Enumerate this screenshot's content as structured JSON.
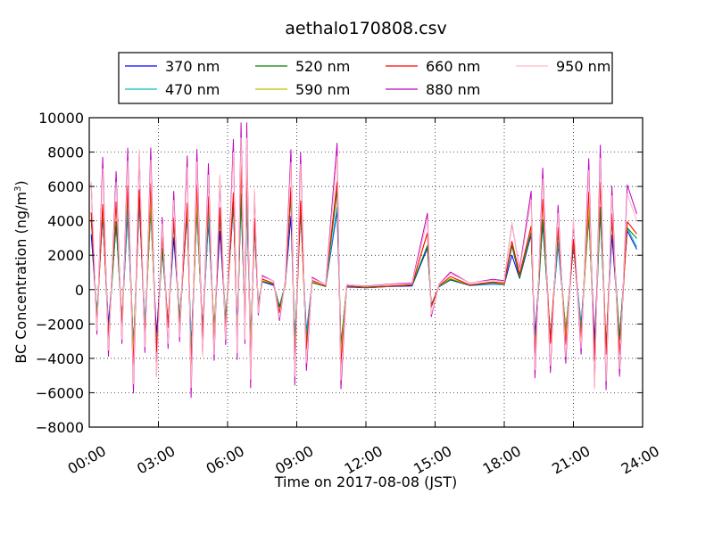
{
  "chart_data": {
    "type": "line",
    "title": "aethalo170808.csv",
    "xlabel": "Time on 2017-08-08 (JST)",
    "ylabel": "BC Concentration (ng/m",
    "ylabel_sup": "3",
    "ylabel_close": ")",
    "xlim": [
      "00:00",
      "24:00"
    ],
    "ylim": [
      -8000,
      10000
    ],
    "x_ticks": [
      "00:00",
      "03:00",
      "06:00",
      "09:00",
      "12:00",
      "15:00",
      "18:00",
      "21:00",
      "24:00"
    ],
    "y_ticks": [
      -8000,
      -6000,
      -4000,
      -2000,
      0,
      2000,
      4000,
      6000,
      8000,
      10000
    ],
    "grid": true,
    "legend_position": "top",
    "series": [
      {
        "name": "370 nm",
        "color": "#0000ff"
      },
      {
        "name": "470 nm",
        "color": "#00bfbf"
      },
      {
        "name": "520 nm",
        "color": "#008000"
      },
      {
        "name": "590 nm",
        "color": "#bfbf00"
      },
      {
        "name": "660 nm",
        "color": "#ff0000"
      },
      {
        "name": "880 nm",
        "color": "#bf00bf"
      },
      {
        "name": "950 nm",
        "color": "#ffb6c1"
      }
    ],
    "key_points_880nm": [
      [
        "00:05",
        6400
      ],
      [
        "00:20",
        -2600
      ],
      [
        "00:35",
        7400
      ],
      [
        "00:50",
        -4000
      ],
      [
        "01:10",
        6800
      ],
      [
        "01:25",
        -3000
      ],
      [
        "01:40",
        8400
      ],
      [
        "01:55",
        -5900
      ],
      [
        "02:10",
        8400
      ],
      [
        "02:25",
        -3700
      ],
      [
        "02:40",
        8000
      ],
      [
        "02:55",
        -5200
      ],
      [
        "03:10",
        4200
      ],
      [
        "03:25",
        -3300
      ],
      [
        "03:40",
        5900
      ],
      [
        "03:55",
        -3000
      ],
      [
        "04:15",
        7400
      ],
      [
        "04:25",
        -6400
      ],
      [
        "04:40",
        8000
      ],
      [
        "04:55",
        -4000
      ],
      [
        "05:10",
        7400
      ],
      [
        "05:25",
        -4000
      ],
      [
        "05:40",
        6800
      ],
      [
        "05:55",
        -3200
      ],
      [
        "06:15",
        8400
      ],
      [
        "06:25",
        -4200
      ],
      [
        "06:35",
        9600
      ],
      [
        "06:45",
        -3000
      ],
      [
        "06:50",
        9900
      ],
      [
        "07:00",
        -5600
      ],
      [
        "07:10",
        6000
      ],
      [
        "07:20",
        -1500
      ],
      [
        "07:30",
        800
      ],
      [
        "08:00",
        500
      ],
      [
        "08:15",
        -1800
      ],
      [
        "08:30",
        500
      ],
      [
        "08:45",
        8400
      ],
      [
        "08:55",
        -5500
      ],
      [
        "09:10",
        7600
      ],
      [
        "09:25",
        -4800
      ],
      [
        "09:40",
        700
      ],
      [
        "10:15",
        300
      ],
      [
        "10:45",
        8600
      ],
      [
        "10:55",
        -5600
      ],
      [
        "11:10",
        300
      ],
      [
        "12:00",
        200
      ],
      [
        "13:00",
        300
      ],
      [
        "14:00",
        400
      ],
      [
        "14:40",
        4400
      ],
      [
        "14:50",
        -1500
      ],
      [
        "15:10",
        300
      ],
      [
        "15:40",
        1000
      ],
      [
        "16:30",
        400
      ],
      [
        "17:30",
        600
      ],
      [
        "18:00",
        500
      ],
      [
        "18:20",
        4000
      ],
      [
        "18:40",
        1200
      ],
      [
        "19:10",
        5500
      ],
      [
        "19:20",
        -5300
      ],
      [
        "19:40",
        7000
      ],
      [
        "20:00",
        -4600
      ],
      [
        "20:20",
        5000
      ],
      [
        "20:40",
        -4200
      ],
      [
        "21:00",
        4200
      ],
      [
        "21:20",
        -3800
      ],
      [
        "21:40",
        7400
      ],
      [
        "21:55",
        -5900
      ],
      [
        "22:10",
        8400
      ],
      [
        "22:25",
        -5600
      ],
      [
        "22:40",
        6200
      ],
      [
        "23:00",
        -5000
      ],
      [
        "23:20",
        5800
      ],
      [
        "23:45",
        4500
      ]
    ]
  }
}
